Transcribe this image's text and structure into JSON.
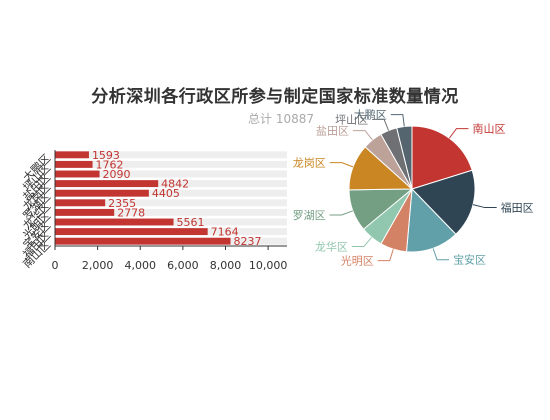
{
  "title": "分析深圳各行政区所参与制定国家标准数量情况",
  "total_label": "总计 10887",
  "colors": {
    "bar": "#c23531",
    "bar_bg": "#eeeeee",
    "palette": [
      "#c23531",
      "#2f4554",
      "#61a0a8",
      "#d48265",
      "#91c7ae",
      "#749f83",
      "#ca8622",
      "#bda29a",
      "#6e7074",
      "#546570"
    ]
  },
  "chart_data": [
    {
      "type": "bar",
      "orientation": "horizontal",
      "categories": [
        "南山区",
        "福田区",
        "宝安区",
        "光明区",
        "龙华区",
        "罗湖区",
        "龙岗区",
        "盐田区",
        "坪山区",
        "大鹏区"
      ],
      "values": [
        8237,
        7164,
        5561,
        2778,
        2355,
        4405,
        4842,
        2090,
        1762,
        1593
      ],
      "xlim": [
        0,
        10887
      ],
      "xticks": [
        "0",
        "2,000",
        "4,000",
        "6,000",
        "8,000",
        "10,000"
      ],
      "xtick_values": [
        0,
        2000,
        4000,
        6000,
        8000,
        10000
      ]
    },
    {
      "type": "pie",
      "categories": [
        "南山区",
        "福田区",
        "宝安区",
        "光明区",
        "龙华区",
        "罗湖区",
        "龙岗区",
        "盐田区",
        "坪山区",
        "大鹏区"
      ],
      "values": [
        8237,
        7164,
        5561,
        2778,
        2355,
        4405,
        4842,
        2090,
        1762,
        1593
      ]
    }
  ]
}
